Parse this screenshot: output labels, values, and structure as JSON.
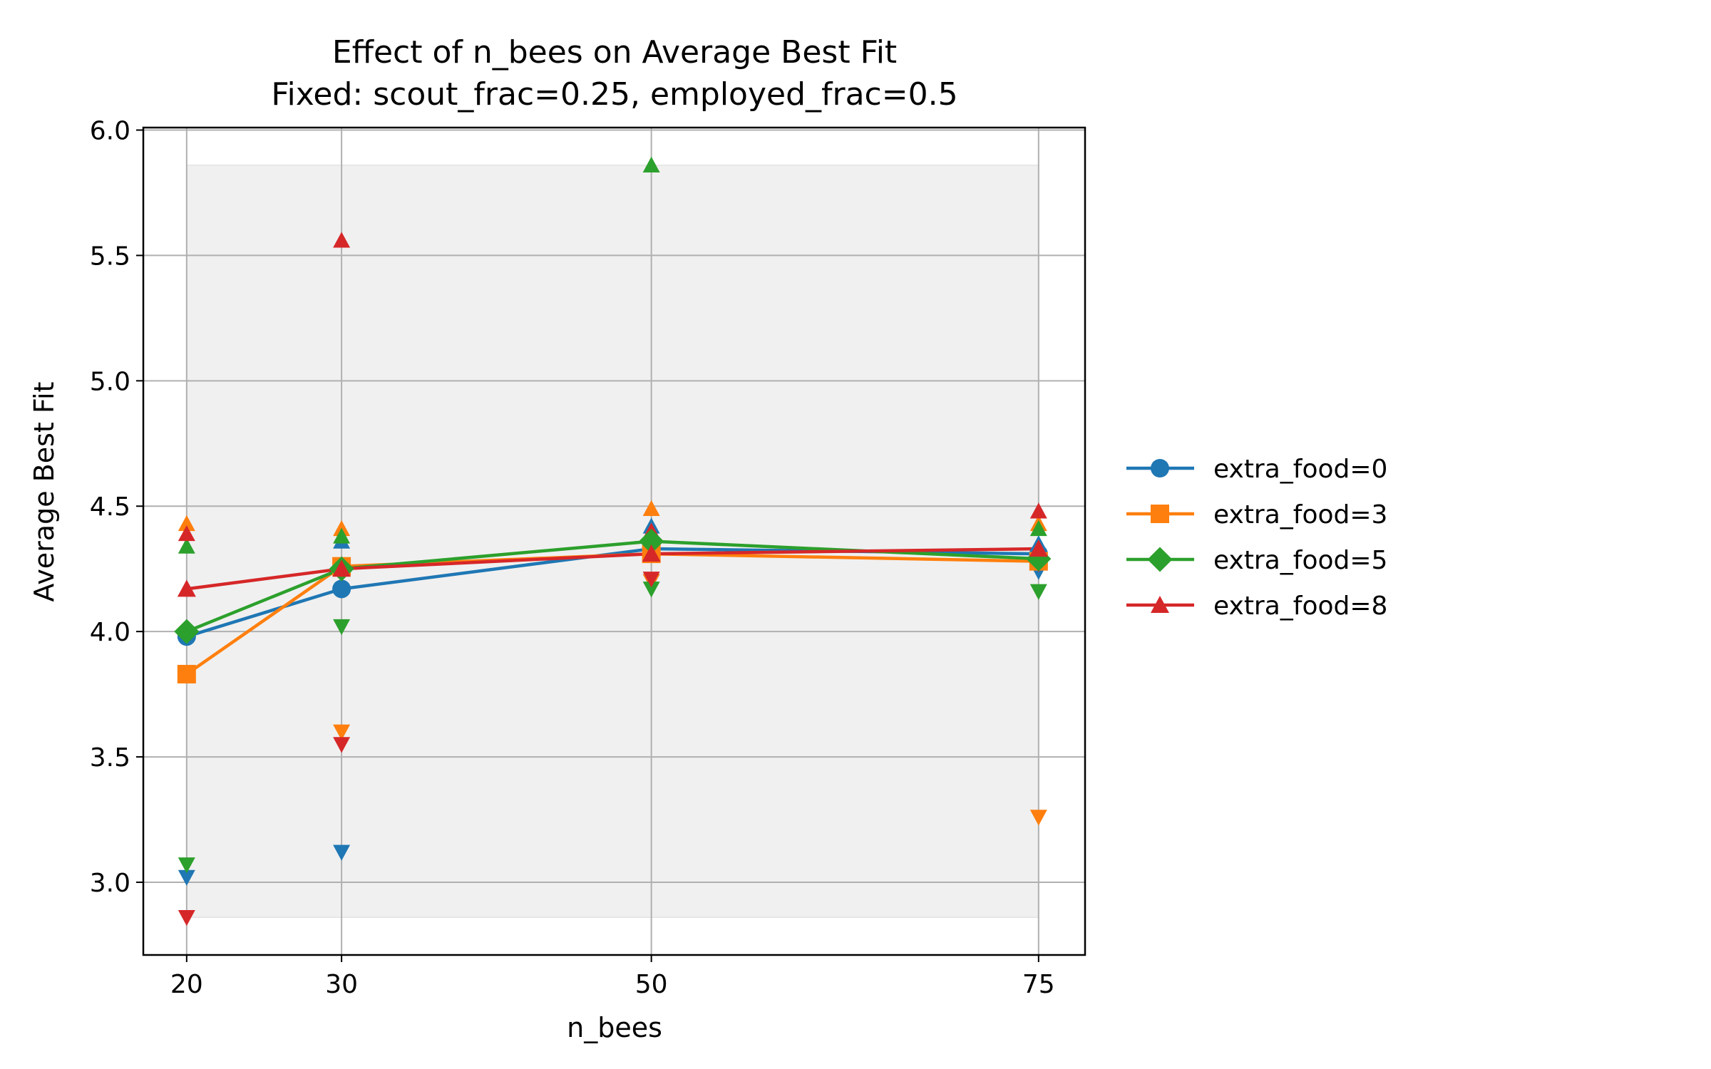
{
  "chart_data": {
    "type": "line",
    "title_line1": "Effect of n_bees on Average Best Fit",
    "title_line2": "Fixed: scout_frac=0.25, employed_frac=0.5",
    "xlabel": "n_bees",
    "ylabel": "Average Best Fit",
    "x": [
      20,
      30,
      50,
      75
    ],
    "xlim": [
      17.2,
      78.0
    ],
    "ylim": [
      2.71,
      6.01
    ],
    "yticks": [
      3.0,
      3.5,
      4.0,
      4.5,
      5.0,
      5.5,
      6.0
    ],
    "ytick_labels": [
      "3.0",
      "3.5",
      "4.0",
      "4.5",
      "5.0",
      "5.5",
      "6.0"
    ],
    "xtick_labels": [
      "20",
      "30",
      "50",
      "75"
    ],
    "grid": true,
    "legend_position": "right",
    "shaded_band": {
      "y_min": 2.86,
      "y_max": 5.86,
      "x_min": 20,
      "x_max": 75,
      "color": "#f0f0f0"
    },
    "series": [
      {
        "name": "extra_food=0",
        "color": "#1f77b4",
        "marker": "circle",
        "values": [
          3.98,
          4.17,
          4.33,
          4.31
        ],
        "max": [
          4.01,
          4.36,
          4.42,
          4.35
        ],
        "min": [
          3.02,
          3.12,
          4.2,
          4.24
        ]
      },
      {
        "name": "extra_food=3",
        "color": "#ff7f0e",
        "marker": "square",
        "values": [
          3.83,
          4.26,
          4.31,
          4.28
        ],
        "max": [
          4.43,
          4.41,
          4.49,
          4.43
        ],
        "min": [
          3.83,
          3.6,
          4.2,
          3.26
        ]
      },
      {
        "name": "extra_food=5",
        "color": "#2ca02c",
        "marker": "diamond",
        "values": [
          4.0,
          4.25,
          4.36,
          4.29
        ],
        "max": [
          4.34,
          4.38,
          5.86,
          4.41
        ],
        "min": [
          3.07,
          4.02,
          4.17,
          4.16
        ]
      },
      {
        "name": "extra_food=8",
        "color": "#d62728",
        "marker": "triangle",
        "values": [
          4.17,
          4.25,
          4.31,
          4.33
        ],
        "max": [
          4.39,
          5.56,
          4.4,
          4.48
        ],
        "min": [
          2.86,
          3.55,
          4.21,
          4.27
        ]
      }
    ]
  }
}
